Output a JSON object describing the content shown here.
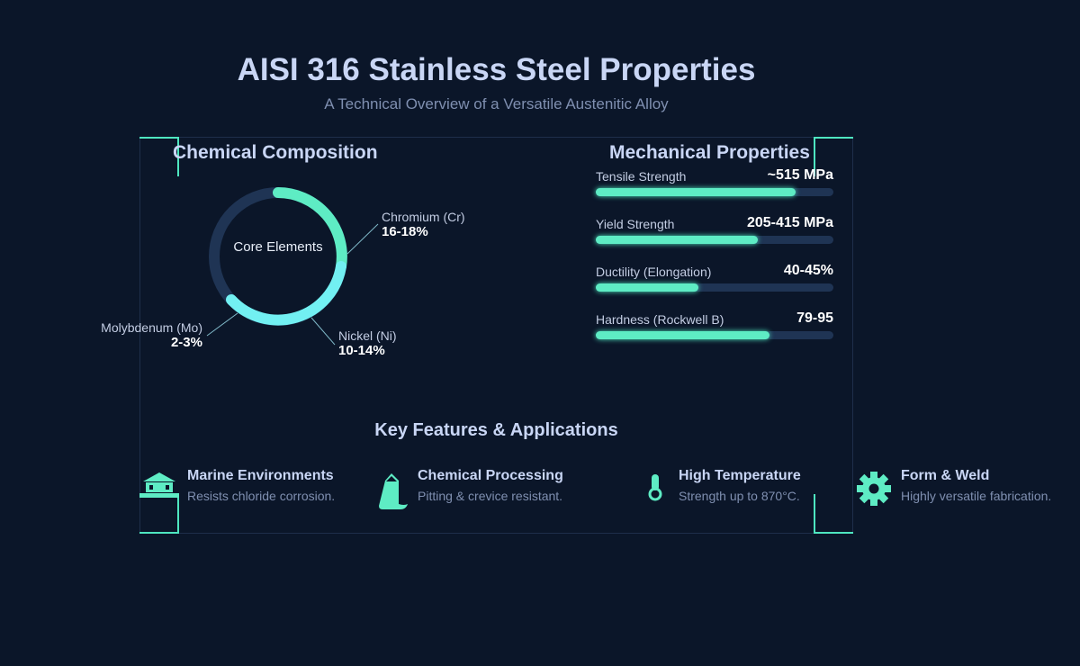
{
  "header": {
    "title": "AISI 316 Stainless Steel Properties",
    "subtitle": "A Technical Overview of a Versatile Austenitic Alloy"
  },
  "composition": {
    "title": "Chemical Composition",
    "center_label": "Core Elements",
    "elements": [
      {
        "name": "Chromium (Cr)",
        "value": "16-18%",
        "color": "#5eecc4"
      },
      {
        "name": "Nickel (Ni)",
        "value": "10-14%",
        "color": "#6ef0f0"
      },
      {
        "name": "Molybdenum (Mo)",
        "value": "2-3%"
      }
    ]
  },
  "mechanical": {
    "title": "Mechanical Properties",
    "items": [
      {
        "name": "Tensile Strength",
        "value": "~515 MPa",
        "fill_percent": 84
      },
      {
        "name": "Yield Strength",
        "value": "205-415 MPa",
        "fill_percent": 68
      },
      {
        "name": "Ductility (Elongation)",
        "value": "40-45%",
        "fill_percent": 43
      },
      {
        "name": "Hardness (Rockwell B)",
        "value": "79-95",
        "fill_percent": 73
      }
    ]
  },
  "features": {
    "title": "Key Features & Applications",
    "items": [
      {
        "title": "Marine Environments",
        "desc": "Resists chloride corrosion.",
        "icon": "building-icon"
      },
      {
        "title": "Chemical Processing",
        "desc": "Pitting & crevice resistant.",
        "icon": "flask-icon"
      },
      {
        "title": "High Temperature",
        "desc": "Strength up to 870°C.",
        "icon": "thermometer-icon"
      },
      {
        "title": "Form & Weld",
        "desc": "Highly versatile fabrication.",
        "icon": "gear-icon"
      }
    ]
  },
  "colors": {
    "background": "#0b1629",
    "accent": "#4ee6c0"
  }
}
